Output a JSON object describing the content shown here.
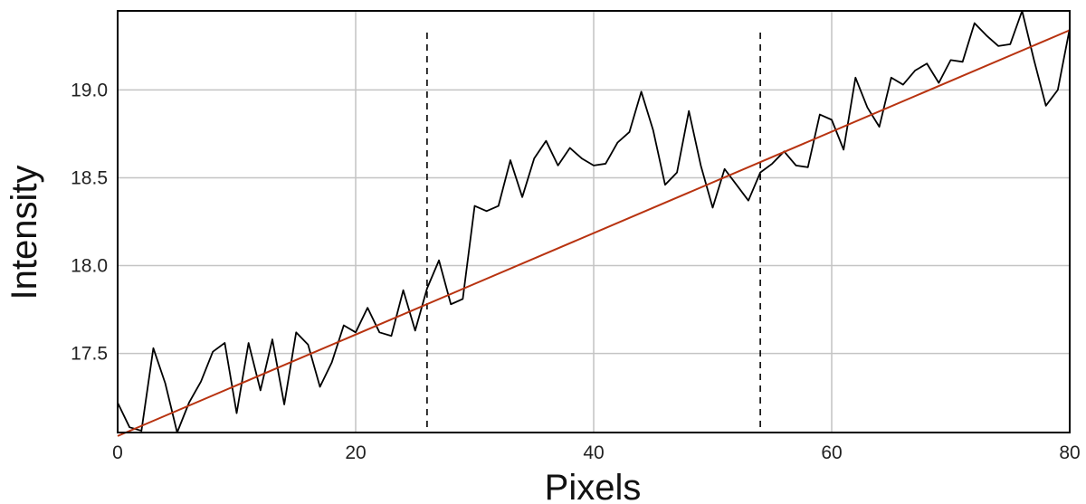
{
  "chart_data": {
    "type": "line",
    "xlabel": "Pixels",
    "ylabel": "Intensity",
    "xlim": [
      0,
      80
    ],
    "ylim": [
      17.05,
      19.45
    ],
    "x_ticks": [
      0,
      20,
      40,
      60,
      80
    ],
    "y_ticks": [
      17.5,
      18.0,
      18.5,
      19.0
    ],
    "x_tick_labels": [
      "0",
      "20",
      "40",
      "60",
      "80"
    ],
    "y_tick_labels": [
      "17.5",
      "18.0",
      "18.5",
      "19.0"
    ],
    "grid": true,
    "legend": "none",
    "series": [
      {
        "kind": "profile",
        "color": "#000000",
        "x": [
          0,
          1,
          2,
          3,
          4,
          5,
          6,
          7,
          8,
          9,
          10,
          11,
          12,
          13,
          14,
          15,
          16,
          17,
          18,
          19,
          20,
          21,
          22,
          23,
          24,
          25,
          26,
          27,
          28,
          29,
          30,
          31,
          32,
          33,
          34,
          35,
          36,
          37,
          38,
          39,
          40,
          41,
          42,
          43,
          44,
          45,
          46,
          47,
          48,
          49,
          50,
          51,
          52,
          53,
          54,
          55,
          56,
          57,
          58,
          59,
          60,
          61,
          62,
          63,
          64,
          65,
          66,
          67,
          68,
          69,
          70,
          71,
          72,
          73,
          74,
          75,
          76,
          77,
          78,
          79,
          80
        ],
        "y": [
          17.22,
          17.08,
          17.06,
          17.53,
          17.33,
          17.05,
          17.22,
          17.34,
          17.51,
          17.56,
          17.16,
          17.56,
          17.29,
          17.58,
          17.21,
          17.62,
          17.55,
          17.31,
          17.45,
          17.66,
          17.62,
          17.76,
          17.62,
          17.6,
          17.86,
          17.63,
          17.87,
          18.03,
          17.78,
          17.81,
          18.34,
          18.31,
          18.34,
          18.6,
          18.39,
          18.61,
          18.71,
          18.57,
          18.67,
          18.61,
          18.57,
          18.58,
          18.7,
          18.76,
          18.99,
          18.77,
          18.46,
          18.53,
          18.88,
          18.57,
          18.33,
          18.55,
          18.46,
          18.37,
          18.53,
          18.58,
          18.65,
          18.57,
          18.56,
          18.86,
          18.83,
          18.66,
          19.07,
          18.9,
          18.79,
          19.07,
          19.03,
          19.11,
          19.15,
          19.04,
          19.17,
          19.16,
          19.38,
          19.31,
          19.25,
          19.26,
          19.45,
          19.17,
          18.91,
          19.0,
          19.35
        ]
      },
      {
        "kind": "linear-fit",
        "color": "#b83310",
        "x": [
          0,
          80
        ],
        "y": [
          17.03,
          19.34
        ]
      }
    ],
    "vlines": [
      26,
      54
    ]
  }
}
